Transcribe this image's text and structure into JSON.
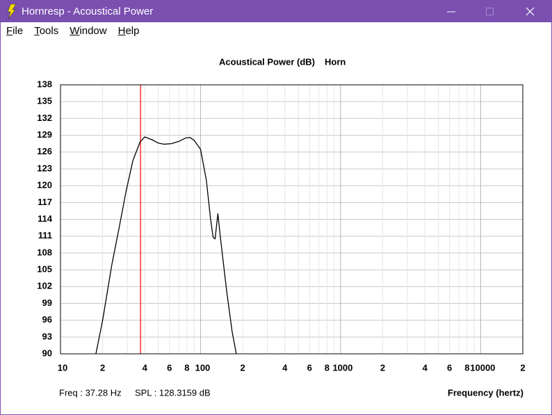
{
  "window": {
    "title": "Hornresp - Acoustical Power"
  },
  "menu": [
    "File",
    "Tools",
    "Window",
    "Help"
  ],
  "readout": {
    "freq": "Freq : 37.28 Hz",
    "spl": "SPL : 128.3159 dB",
    "color": "#ff0000"
  },
  "chart_data": {
    "type": "line",
    "title": "Acoustical Power (dB)",
    "xlabel": "Frequency (hertz)",
    "x": [
      17.9,
      20,
      23.3,
      26,
      29.4,
      32.9,
      37,
      40,
      45,
      50,
      55,
      62,
      70,
      78,
      84,
      90,
      100,
      110,
      118,
      123,
      127,
      133,
      139,
      154,
      168,
      180
    ],
    "series": [
      {
        "name": "Horn",
        "color": "#000000",
        "values": [
          90,
          96,
          106,
          112,
          119,
          124.5,
          127.8,
          128.7,
          128.2,
          127.6,
          127.4,
          127.5,
          127.9,
          128.5,
          128.6,
          128.1,
          126.5,
          121,
          114,
          110.8,
          110.5,
          115,
          110.5,
          101,
          94,
          90
        ]
      }
    ],
    "xscale": "log",
    "xlim": [
      10,
      20000
    ],
    "ylim": [
      90,
      138
    ],
    "xticks": [
      10,
      {
        "value": 20,
        "label": "2"
      },
      {
        "value": 40,
        "label": "4"
      },
      {
        "value": 60,
        "label": "6"
      },
      {
        "value": 80,
        "label": "8"
      },
      100,
      {
        "value": 200,
        "label": "2"
      },
      {
        "value": 400,
        "label": "4"
      },
      {
        "value": 600,
        "label": "6"
      },
      {
        "value": 800,
        "label": "8"
      },
      1000,
      {
        "value": 2000,
        "label": "2"
      },
      {
        "value": 4000,
        "label": "4"
      },
      {
        "value": 6000,
        "label": "6"
      },
      {
        "value": 8000,
        "label": "8"
      },
      10000,
      {
        "value": 20000,
        "label": "2"
      }
    ],
    "xminor_ticks": [
      30,
      50,
      70,
      90,
      300,
      500,
      700,
      900,
      3000,
      5000,
      7000,
      9000
    ],
    "yticks": [
      90,
      93,
      96,
      99,
      102,
      105,
      108,
      111,
      114,
      117,
      120,
      123,
      126,
      129,
      132,
      135,
      138
    ],
    "grid": true,
    "cursor_x": 37.28,
    "cursor_color": "#ff0000"
  }
}
